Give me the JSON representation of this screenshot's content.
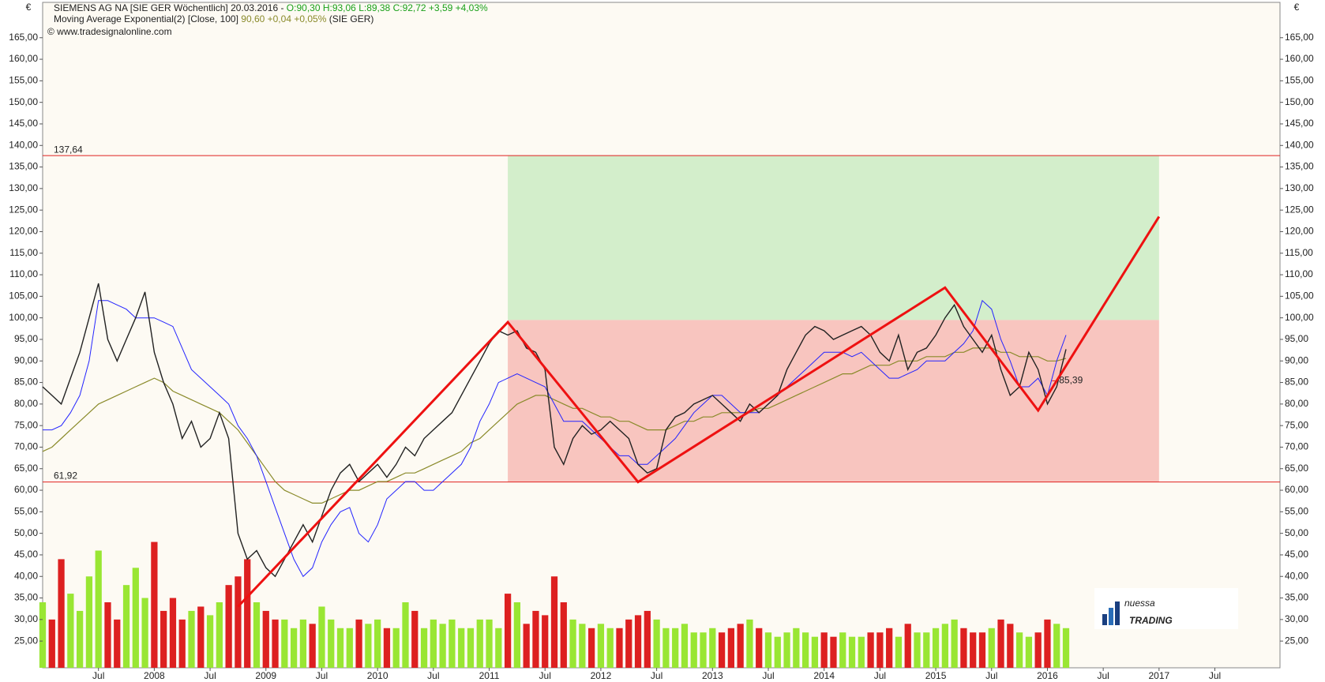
{
  "chart_data": {
    "type": "line",
    "header": {
      "instrument": "SIEMENS AG NA [SIE GER  Wöchentlich] 20.03.2016 - ",
      "quote": "O:90,30 H:93,06 L:89,38 C:92,72 +3,59 +4,03%",
      "indicator": "Moving Average Exponential(2) [Close, 100] ",
      "indicator_quote": "90,60 +0,04 +0,05%",
      "indicator_suffix": " (SIE GER)",
      "source": "© www.tradesignalonline.com"
    },
    "currency": "€",
    "logo": {
      "top": "nuessa",
      "bottom": "TRADING"
    },
    "background": "#fdfaf3",
    "xlim": [
      "2007-01",
      "2018-02"
    ],
    "xticks": [
      {
        "value": "2007-07",
        "label": "Jul"
      },
      {
        "value": "2008-01",
        "label": "2008"
      },
      {
        "value": "2008-07",
        "label": "Jul"
      },
      {
        "value": "2009-01",
        "label": "2009"
      },
      {
        "value": "2009-07",
        "label": "Jul"
      },
      {
        "value": "2010-01",
        "label": "2010"
      },
      {
        "value": "2010-07",
        "label": "Jul"
      },
      {
        "value": "2011-01",
        "label": "2011"
      },
      {
        "value": "2011-07",
        "label": "Jul"
      },
      {
        "value": "2012-01",
        "label": "2012"
      },
      {
        "value": "2012-07",
        "label": "Jul"
      },
      {
        "value": "2013-01",
        "label": "2013"
      },
      {
        "value": "2013-07",
        "label": "Jul"
      },
      {
        "value": "2014-01",
        "label": "2014"
      },
      {
        "value": "2014-07",
        "label": "Jul"
      },
      {
        "value": "2015-01",
        "label": "2015"
      },
      {
        "value": "2015-07",
        "label": "Jul"
      },
      {
        "value": "2016-01",
        "label": "2016"
      },
      {
        "value": "2016-07",
        "label": "Jul"
      },
      {
        "value": "2017-01",
        "label": "2017"
      },
      {
        "value": "2017-07",
        "label": "Jul"
      }
    ],
    "ylim": [
      18.8,
      173.2
    ],
    "yticks": [
      {
        "value": 25,
        "label": "25,00"
      },
      {
        "value": 30,
        "label": "30,00"
      },
      {
        "value": 35,
        "label": "35,00"
      },
      {
        "value": 40,
        "label": "40,00"
      },
      {
        "value": 45,
        "label": "45,00"
      },
      {
        "value": 50,
        "label": "50,00"
      },
      {
        "value": 55,
        "label": "55,00"
      },
      {
        "value": 60,
        "label": "60,00"
      },
      {
        "value": 65,
        "label": "65,00"
      },
      {
        "value": 70,
        "label": "70,00"
      },
      {
        "value": 75,
        "label": "75,00"
      },
      {
        "value": 80,
        "label": "80,00"
      },
      {
        "value": 85,
        "label": "85,00"
      },
      {
        "value": 90,
        "label": "90,00"
      },
      {
        "value": 95,
        "label": "95,00"
      },
      {
        "value": 100,
        "label": "100,00"
      },
      {
        "value": 105,
        "label": "105,00"
      },
      {
        "value": 110,
        "label": "110,00"
      },
      {
        "value": 115,
        "label": "115,00"
      },
      {
        "value": 120,
        "label": "120,00"
      },
      {
        "value": 125,
        "label": "125,00"
      },
      {
        "value": 130,
        "label": "130,00"
      },
      {
        "value": 135,
        "label": "135,00"
      },
      {
        "value": 140,
        "label": "140,00"
      },
      {
        "value": 145,
        "label": "145,00"
      },
      {
        "value": 150,
        "label": "150,00"
      },
      {
        "value": 155,
        "label": "155,00"
      },
      {
        "value": 160,
        "label": "160,00"
      },
      {
        "value": 165,
        "label": "165,00"
      }
    ],
    "x": [
      "2007-01",
      "2007-02",
      "2007-03",
      "2007-04",
      "2007-05",
      "2007-06",
      "2007-07",
      "2007-08",
      "2007-09",
      "2007-10",
      "2007-11",
      "2007-12",
      "2008-01",
      "2008-02",
      "2008-03",
      "2008-04",
      "2008-05",
      "2008-06",
      "2008-07",
      "2008-08",
      "2008-09",
      "2008-10",
      "2008-11",
      "2008-12",
      "2009-01",
      "2009-02",
      "2009-03",
      "2009-04",
      "2009-05",
      "2009-06",
      "2009-07",
      "2009-08",
      "2009-09",
      "2009-10",
      "2009-11",
      "2009-12",
      "2010-01",
      "2010-02",
      "2010-03",
      "2010-04",
      "2010-05",
      "2010-06",
      "2010-07",
      "2010-08",
      "2010-09",
      "2010-10",
      "2010-11",
      "2010-12",
      "2011-01",
      "2011-02",
      "2011-03",
      "2011-04",
      "2011-05",
      "2011-06",
      "2011-07",
      "2011-08",
      "2011-09",
      "2011-10",
      "2011-11",
      "2011-12",
      "2012-01",
      "2012-02",
      "2012-03",
      "2012-04",
      "2012-05",
      "2012-06",
      "2012-07",
      "2012-08",
      "2012-09",
      "2012-10",
      "2012-11",
      "2012-12",
      "2013-01",
      "2013-02",
      "2013-03",
      "2013-04",
      "2013-05",
      "2013-06",
      "2013-07",
      "2013-08",
      "2013-09",
      "2013-10",
      "2013-11",
      "2013-12",
      "2014-01",
      "2014-02",
      "2014-03",
      "2014-04",
      "2014-05",
      "2014-06",
      "2014-07",
      "2014-08",
      "2014-09",
      "2014-10",
      "2014-11",
      "2014-12",
      "2015-01",
      "2015-02",
      "2015-03",
      "2015-04",
      "2015-05",
      "2015-06",
      "2015-07",
      "2015-08",
      "2015-09",
      "2015-10",
      "2015-11",
      "2015-12",
      "2016-01",
      "2016-02",
      "2016-03"
    ],
    "series": [
      {
        "color": "#222222",
        "width": 1.4,
        "values": [
          84,
          82,
          80,
          86,
          92,
          100,
          108,
          95,
          90,
          95,
          100,
          106,
          92,
          85,
          80,
          72,
          76,
          70,
          72,
          78,
          72,
          50,
          44,
          46,
          42,
          40,
          44,
          48,
          52,
          48,
          54,
          60,
          64,
          66,
          62,
          64,
          66,
          63,
          66,
          70,
          68,
          72,
          74,
          76,
          78,
          82,
          86,
          90,
          94,
          97,
          96,
          97,
          93,
          92,
          88,
          70,
          66,
          72,
          75,
          73,
          74,
          76,
          74,
          72,
          66,
          64,
          65,
          74,
          77,
          78,
          80,
          81,
          82,
          80,
          78,
          76,
          80,
          78,
          80,
          82,
          88,
          92,
          96,
          98,
          97,
          95,
          96,
          97,
          98,
          96,
          92,
          90,
          96,
          88,
          92,
          93,
          96,
          100,
          103,
          98,
          95,
          92,
          96,
          88,
          82,
          84,
          92,
          88,
          80,
          84,
          92.72
        ]
      },
      {
        "color": "#2424ff",
        "width": 1,
        "values": [
          74,
          74,
          75,
          78,
          82,
          90,
          104,
          104,
          103,
          102,
          100,
          100,
          100,
          99,
          98,
          93,
          88,
          86,
          84,
          82,
          80,
          75,
          72,
          68,
          62,
          56,
          50,
          44,
          40,
          42,
          48,
          52,
          55,
          56,
          50,
          48,
          52,
          58,
          60,
          62,
          62,
          60,
          60,
          62,
          64,
          66,
          70,
          76,
          80,
          85,
          86,
          87,
          86,
          85,
          84,
          80,
          76,
          76,
          76,
          74,
          72,
          70,
          68,
          68,
          66,
          66,
          68,
          70,
          72,
          75,
          78,
          80,
          82,
          82,
          80,
          78,
          78,
          78,
          80,
          82,
          84,
          86,
          88,
          90,
          92,
          92,
          92,
          91,
          92,
          90,
          88,
          86,
          86,
          87,
          88,
          90,
          90,
          90,
          92,
          94,
          97,
          104,
          102,
          95,
          90,
          84,
          84,
          86,
          82,
          90,
          96
        ]
      },
      {
        "color": "#8a8a2a",
        "width": 1.2,
        "values": [
          69,
          70,
          72,
          74,
          76,
          78,
          80,
          81,
          82,
          83,
          84,
          85,
          86,
          85,
          83,
          82,
          81,
          80,
          79,
          78,
          76,
          74,
          71,
          68,
          65,
          62,
          60,
          59,
          58,
          57,
          57,
          58,
          59,
          60,
          60,
          61,
          62,
          62,
          63,
          64,
          64,
          65,
          66,
          67,
          68,
          69,
          71,
          72,
          74,
          76,
          78,
          80,
          81,
          82,
          82,
          81,
          80,
          79,
          79,
          78,
          77,
          77,
          76,
          76,
          75,
          74,
          74,
          74,
          75,
          76,
          76,
          77,
          77,
          78,
          78,
          78,
          78,
          79,
          79,
          80,
          81,
          82,
          83,
          84,
          85,
          86,
          87,
          87,
          88,
          89,
          89,
          89,
          90,
          90,
          90,
          91,
          91,
          91,
          92,
          92,
          93,
          93,
          93,
          92,
          92,
          91,
          91,
          91,
          90,
          90,
          90.6
        ]
      }
    ],
    "volume": {
      "up_color": "#99e633",
      "down_color": "#dd2020",
      "values": [
        34,
        30,
        44,
        36,
        32,
        40,
        46,
        34,
        30,
        38,
        42,
        35,
        48,
        32,
        35,
        30,
        32,
        33,
        31,
        34,
        38,
        40,
        44,
        34,
        32,
        30,
        30,
        28,
        30,
        29,
        33,
        30,
        28,
        28,
        30,
        29,
        30,
        28,
        28,
        34,
        32,
        28,
        30,
        29,
        30,
        28,
        28,
        30,
        30,
        28,
        36,
        34,
        29,
        32,
        31,
        40,
        34,
        30,
        29,
        28,
        29,
        28,
        28,
        30,
        31,
        32,
        30,
        28,
        28,
        29,
        27,
        27,
        28,
        27,
        28,
        29,
        30,
        28,
        27,
        26,
        27,
        28,
        27,
        26,
        27,
        26,
        27,
        26,
        26,
        27,
        27,
        28,
        26,
        29,
        27,
        27,
        28,
        29,
        30,
        28,
        27,
        27,
        28,
        30,
        29,
        27,
        26,
        27,
        30,
        29,
        28
      ]
    },
    "zones": [
      {
        "x": [
          "2011-03",
          "2017-01"
        ],
        "y": [
          99.5,
          137.64
        ],
        "color": "#d3eecb"
      },
      {
        "x": [
          "2011-03",
          "2017-01"
        ],
        "y": [
          61.92,
          99.5
        ],
        "color": "#f8c5bf"
      }
    ],
    "hlines": [
      {
        "value": 137.64,
        "label": "137,64",
        "color": "#e02020"
      },
      {
        "value": 61.92,
        "label": "61,92",
        "color": "#e02020"
      }
    ],
    "pattern": {
      "color": "#ee1111",
      "x": [
        "2008-10",
        "2011-03",
        "2012-05",
        "2015-02",
        "2015-12",
        "2017-01"
      ],
      "values": [
        33,
        99,
        61.92,
        107,
        78.5,
        123.5
      ]
    },
    "annotation": {
      "x": "2016-02",
      "value": 85.39,
      "label": "85,39",
      "color": "#e02020"
    }
  }
}
